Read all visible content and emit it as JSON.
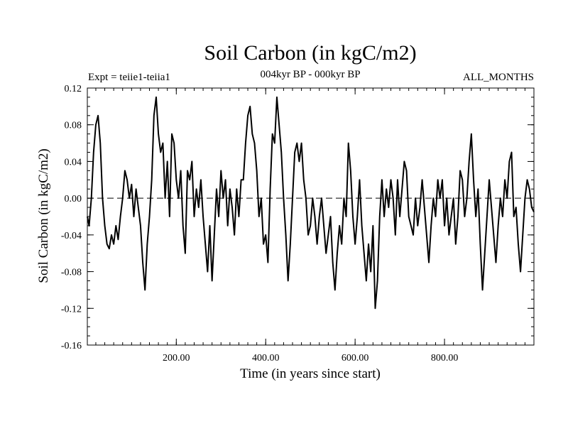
{
  "chart_data": {
    "type": "line",
    "title": "Soil Carbon (in kgC/m2)",
    "subtitle_left": "Expt = teiie1-teiia1",
    "subtitle_center": "004kyr BP - 000kyr BP",
    "subtitle_right": "ALL_MONTHS",
    "xlabel": "Time (in years since start)",
    "ylabel": "Soil Carbon (in kgC/m2)",
    "xlim": [
      1,
      1000
    ],
    "ylim": [
      -0.16,
      0.12
    ],
    "x_ticks": [
      200,
      400,
      600,
      800
    ],
    "x_tick_labels": [
      "200.00",
      "400.00",
      "600.00",
      "800.00"
    ],
    "y_ticks": [
      -0.16,
      -0.12,
      -0.08,
      -0.04,
      0.0,
      0.04,
      0.08,
      0.12
    ],
    "y_tick_labels": [
      "-0.16",
      "-0.12",
      "-0.08",
      "-0.04",
      "0.00",
      "0.04",
      "0.08",
      "0.12"
    ],
    "zero_line": true,
    "grid": false,
    "series": [
      {
        "color": "#000000",
        "points": [
          [
            1,
            -0.02
          ],
          [
            5,
            -0.03
          ],
          [
            10,
            0.0
          ],
          [
            15,
            0.05
          ],
          [
            20,
            0.08
          ],
          [
            25,
            0.09
          ],
          [
            30,
            0.06
          ],
          [
            35,
            0.0
          ],
          [
            40,
            -0.03
          ],
          [
            45,
            -0.05
          ],
          [
            50,
            -0.055
          ],
          [
            55,
            -0.04
          ],
          [
            60,
            -0.05
          ],
          [
            65,
            -0.03
          ],
          [
            70,
            -0.045
          ],
          [
            75,
            -0.02
          ],
          [
            80,
            0.0
          ],
          [
            85,
            0.03
          ],
          [
            90,
            0.02
          ],
          [
            95,
            0.0
          ],
          [
            100,
            0.015
          ],
          [
            105,
            -0.02
          ],
          [
            110,
            0.01
          ],
          [
            115,
            -0.01
          ],
          [
            120,
            -0.03
          ],
          [
            125,
            -0.07
          ],
          [
            130,
            -0.1
          ],
          [
            135,
            -0.05
          ],
          [
            140,
            -0.02
          ],
          [
            145,
            0.02
          ],
          [
            150,
            0.09
          ],
          [
            155,
            0.11
          ],
          [
            160,
            0.07
          ],
          [
            165,
            0.05
          ],
          [
            170,
            0.06
          ],
          [
            175,
            0.0
          ],
          [
            180,
            0.04
          ],
          [
            185,
            -0.02
          ],
          [
            190,
            0.07
          ],
          [
            195,
            0.06
          ],
          [
            200,
            0.02
          ],
          [
            205,
            0.0
          ],
          [
            210,
            0.03
          ],
          [
            215,
            -0.03
          ],
          [
            220,
            -0.06
          ],
          [
            225,
            0.03
          ],
          [
            230,
            0.02
          ],
          [
            235,
            0.04
          ],
          [
            240,
            -0.02
          ],
          [
            245,
            0.01
          ],
          [
            250,
            -0.01
          ],
          [
            255,
            0.02
          ],
          [
            260,
            -0.02
          ],
          [
            265,
            -0.05
          ],
          [
            270,
            -0.08
          ],
          [
            275,
            -0.03
          ],
          [
            280,
            -0.09
          ],
          [
            285,
            -0.04
          ],
          [
            290,
            0.01
          ],
          [
            295,
            -0.02
          ],
          [
            300,
            0.03
          ],
          [
            305,
            0.0
          ],
          [
            310,
            0.02
          ],
          [
            315,
            -0.03
          ],
          [
            320,
            0.01
          ],
          [
            325,
            -0.01
          ],
          [
            330,
            -0.04
          ],
          [
            335,
            0.01
          ],
          [
            340,
            -0.02
          ],
          [
            345,
            0.02
          ],
          [
            350,
            0.02
          ],
          [
            355,
            0.06
          ],
          [
            360,
            0.09
          ],
          [
            365,
            0.1
          ],
          [
            370,
            0.07
          ],
          [
            375,
            0.06
          ],
          [
            380,
            0.03
          ],
          [
            385,
            -0.02
          ],
          [
            390,
            0.0
          ],
          [
            395,
            -0.05
          ],
          [
            400,
            -0.04
          ],
          [
            405,
            -0.07
          ],
          [
            410,
            0.01
          ],
          [
            415,
            0.07
          ],
          [
            420,
            0.06
          ],
          [
            425,
            0.11
          ],
          [
            430,
            0.08
          ],
          [
            435,
            0.05
          ],
          [
            440,
            0.0
          ],
          [
            445,
            -0.04
          ],
          [
            450,
            -0.09
          ],
          [
            455,
            -0.05
          ],
          [
            460,
            0.0
          ],
          [
            465,
            0.05
          ],
          [
            470,
            0.06
          ],
          [
            475,
            0.04
          ],
          [
            480,
            0.06
          ],
          [
            485,
            0.02
          ],
          [
            490,
            0.0
          ],
          [
            495,
            -0.04
          ],
          [
            500,
            -0.03
          ],
          [
            505,
            0.0
          ],
          [
            510,
            -0.02
          ],
          [
            515,
            -0.05
          ],
          [
            520,
            -0.02
          ],
          [
            525,
            0.0
          ],
          [
            530,
            -0.03
          ],
          [
            535,
            -0.06
          ],
          [
            540,
            -0.04
          ],
          [
            545,
            -0.02
          ],
          [
            550,
            -0.07
          ],
          [
            555,
            -0.1
          ],
          [
            560,
            -0.06
          ],
          [
            565,
            -0.03
          ],
          [
            570,
            -0.05
          ],
          [
            575,
            0.0
          ],
          [
            580,
            -0.02
          ],
          [
            585,
            0.06
          ],
          [
            590,
            0.03
          ],
          [
            595,
            -0.02
          ],
          [
            600,
            -0.05
          ],
          [
            605,
            -0.02
          ],
          [
            610,
            0.02
          ],
          [
            615,
            -0.03
          ],
          [
            620,
            -0.06
          ],
          [
            625,
            -0.09
          ],
          [
            630,
            -0.05
          ],
          [
            635,
            -0.08
          ],
          [
            640,
            -0.03
          ],
          [
            645,
            -0.12
          ],
          [
            650,
            -0.09
          ],
          [
            655,
            -0.02
          ],
          [
            660,
            0.02
          ],
          [
            665,
            -0.02
          ],
          [
            670,
            0.01
          ],
          [
            675,
            -0.01
          ],
          [
            680,
            0.02
          ],
          [
            685,
            0.0
          ],
          [
            690,
            -0.04
          ],
          [
            695,
            0.02
          ],
          [
            700,
            -0.02
          ],
          [
            705,
            0.01
          ],
          [
            710,
            0.04
          ],
          [
            715,
            0.03
          ],
          [
            720,
            -0.02
          ],
          [
            725,
            -0.03
          ],
          [
            730,
            -0.04
          ],
          [
            735,
            0.0
          ],
          [
            740,
            -0.03
          ],
          [
            745,
            -0.01
          ],
          [
            750,
            0.02
          ],
          [
            755,
            -0.01
          ],
          [
            760,
            -0.04
          ],
          [
            765,
            -0.07
          ],
          [
            770,
            -0.03
          ],
          [
            775,
            0.0
          ],
          [
            780,
            -0.02
          ],
          [
            785,
            0.02
          ],
          [
            790,
            0.0
          ],
          [
            795,
            0.02
          ],
          [
            800,
            -0.03
          ],
          [
            805,
            0.0
          ],
          [
            810,
            -0.04
          ],
          [
            815,
            -0.02
          ],
          [
            820,
            0.0
          ],
          [
            825,
            -0.05
          ],
          [
            830,
            -0.02
          ],
          [
            835,
            0.03
          ],
          [
            840,
            0.02
          ],
          [
            845,
            -0.02
          ],
          [
            850,
            0.0
          ],
          [
            855,
            0.04
          ],
          [
            860,
            0.07
          ],
          [
            865,
            0.02
          ],
          [
            870,
            -0.02
          ],
          [
            875,
            0.01
          ],
          [
            880,
            -0.05
          ],
          [
            885,
            -0.1
          ],
          [
            890,
            -0.06
          ],
          [
            895,
            -0.02
          ],
          [
            900,
            0.02
          ],
          [
            905,
            -0.01
          ],
          [
            910,
            -0.04
          ],
          [
            915,
            -0.07
          ],
          [
            920,
            -0.03
          ],
          [
            925,
            0.0
          ],
          [
            930,
            -0.02
          ],
          [
            935,
            0.02
          ],
          [
            940,
            0.0
          ],
          [
            945,
            0.04
          ],
          [
            950,
            0.05
          ],
          [
            955,
            -0.02
          ],
          [
            960,
            -0.01
          ],
          [
            965,
            -0.05
          ],
          [
            970,
            -0.08
          ],
          [
            975,
            -0.04
          ],
          [
            980,
            0.0
          ],
          [
            985,
            0.02
          ],
          [
            990,
            0.01
          ],
          [
            995,
            -0.01
          ],
          [
            1000,
            -0.015
          ]
        ]
      }
    ]
  }
}
